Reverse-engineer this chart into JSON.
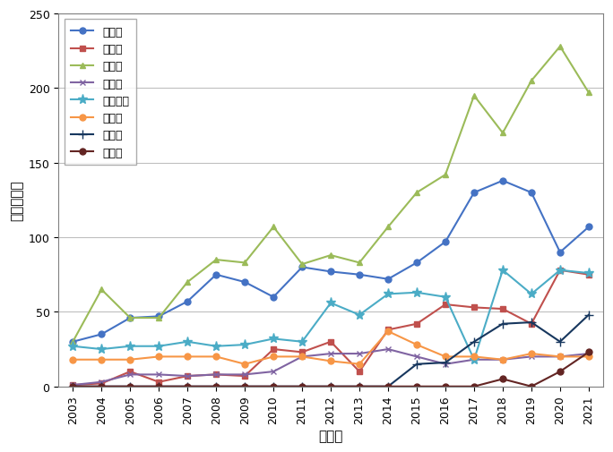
{
  "years": [
    2003,
    2004,
    2005,
    2006,
    2007,
    2008,
    2009,
    2010,
    2011,
    2012,
    2013,
    2014,
    2015,
    2016,
    2017,
    2018,
    2019,
    2020,
    2021
  ],
  "series": {
    "福岡県": [
      30,
      35,
      46,
      47,
      57,
      75,
      70,
      60,
      80,
      77,
      75,
      72,
      83,
      97,
      130,
      138,
      130,
      90,
      107
    ],
    "佐賀県": [
      1,
      2,
      10,
      3,
      7,
      8,
      7,
      25,
      23,
      30,
      10,
      38,
      42,
      55,
      53,
      52,
      42,
      78,
      75
    ],
    "熊本県": [
      30,
      65,
      46,
      46,
      70,
      85,
      83,
      107,
      82,
      88,
      83,
      107,
      130,
      142,
      195,
      170,
      205,
      228,
      197
    ],
    "宮崎県": [
      1,
      3,
      8,
      8,
      7,
      8,
      8,
      10,
      20,
      22,
      22,
      25,
      20,
      15,
      18,
      18,
      20,
      20,
      22
    ],
    "鹿児島県": [
      27,
      25,
      27,
      27,
      30,
      27,
      28,
      32,
      30,
      56,
      48,
      62,
      63,
      60,
      18,
      78,
      62,
      78,
      76
    ],
    "沖縄県": [
      18,
      18,
      18,
      20,
      20,
      20,
      15,
      20,
      20,
      17,
      15,
      37,
      28,
      20,
      20,
      18,
      22,
      20,
      20
    ],
    "山口県": [
      0,
      0,
      0,
      0,
      0,
      0,
      0,
      0,
      0,
      0,
      0,
      0,
      15,
      16,
      30,
      42,
      43,
      30,
      48
    ],
    "その他": [
      0,
      0,
      0,
      0,
      0,
      0,
      0,
      0,
      0,
      0,
      0,
      0,
      0,
      0,
      0,
      5,
      0,
      10,
      23
    ]
  },
  "colors": {
    "福岡県": "#4472C4",
    "佐賀県": "#C0504D",
    "熊本県": "#9BBB59",
    "宮崎県": "#8064A2",
    "鹿児島県": "#4BACC6",
    "沖縄県": "#F79646",
    "山口県": "#17375E",
    "その他": "#632523"
  },
  "markers": {
    "福岡県": "o",
    "佐賀県": "s",
    "熊本県": "^",
    "宮崎県": "x",
    "鹿児島県": "*",
    "沖縄県": "o",
    "山口県": "+",
    "その他": "o"
  },
  "xlabel": "調査年",
  "ylabel": "観察個体数",
  "ylim": [
    0,
    250
  ],
  "yticks": [
    0,
    50,
    100,
    150,
    200,
    250
  ],
  "background_color": "#ffffff",
  "grid_color": "#bfbfbf",
  "border_color": "#808080"
}
